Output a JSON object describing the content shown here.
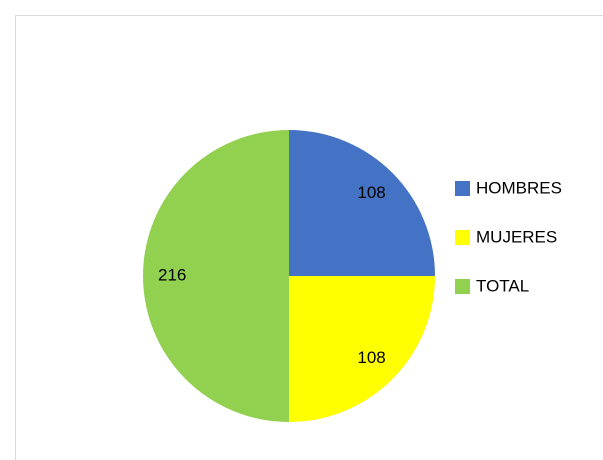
{
  "chart_data": {
    "type": "pie",
    "categories": [
      "HOMBRES",
      "MUJERES",
      "TOTAL"
    ],
    "values": [
      108,
      108,
      216
    ],
    "colors": [
      "#4472c4",
      "#ffff00",
      "#92d050"
    ],
    "legend": "right"
  }
}
